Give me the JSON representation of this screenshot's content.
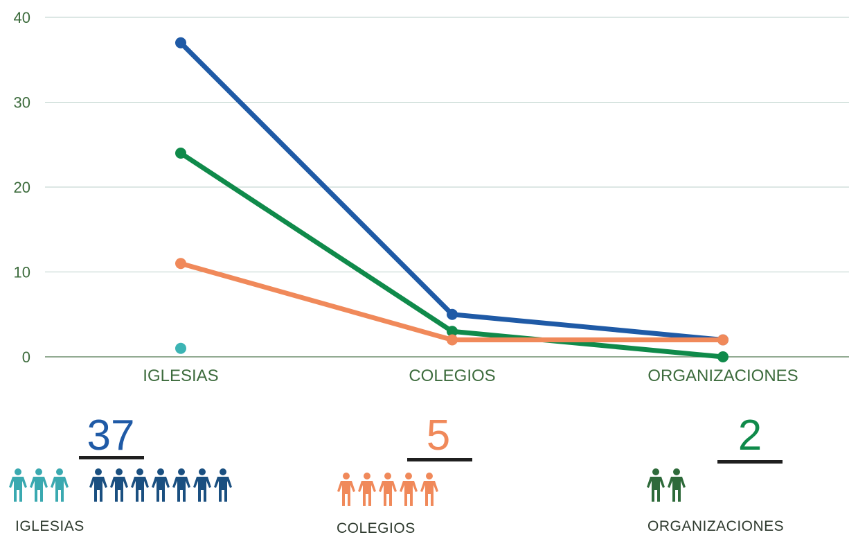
{
  "chart_data": {
    "type": "line",
    "categories": [
      "IGLESIAS",
      "COLEGIOS",
      "ORGANIZACIONES"
    ],
    "ylim": [
      0,
      40
    ],
    "yticks": [
      0,
      10,
      20,
      30,
      40
    ],
    "grid": true,
    "series": [
      {
        "color": "#1f5aa6",
        "values": [
          37,
          5,
          2
        ]
      },
      {
        "color": "#0f8a4a",
        "values": [
          24,
          3,
          0
        ]
      },
      {
        "color": "#f0895a",
        "values": [
          11,
          2,
          2
        ]
      },
      {
        "color": "#3cb4b4",
        "values": [
          1,
          null,
          null
        ]
      }
    ]
  },
  "summary": [
    {
      "number": "37",
      "label": "IGLESIAS",
      "number_color": "#1f5aa6",
      "icon_groups": [
        {
          "icon": "person-icon",
          "count": 3,
          "color": "#3aa9b0"
        },
        {
          "icon": "person-icon",
          "count": 7,
          "color": "#1a4f80"
        }
      ]
    },
    {
      "number": "5",
      "label": "COLEGIOS",
      "number_color": "#f0895a",
      "icon_groups": [
        {
          "icon": "person-icon",
          "count": 5,
          "color": "#f0895a"
        }
      ]
    },
    {
      "number": "2",
      "label": "ORGANIZACIONES",
      "number_color": "#0f8a4a",
      "icon_groups": [
        {
          "icon": "person-icon",
          "count": 2,
          "color": "#2e6a3a"
        }
      ]
    }
  ]
}
